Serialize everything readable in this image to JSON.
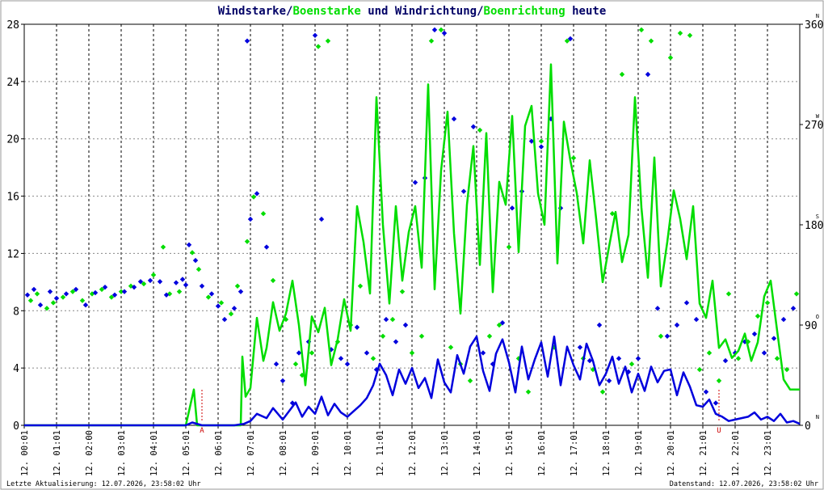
{
  "colors": {
    "wind": "#0000dd",
    "gust": "#00dd00",
    "title_dark": "#000066",
    "grid": "#000000",
    "marker": "#cc0000"
  },
  "chart_data": {
    "type": "line",
    "title_parts": [
      "Windstarke",
      "/",
      "Boenstarke",
      " und ",
      "Windrichtung",
      "/",
      "Boenrichtung",
      " heute"
    ],
    "xlabel": "",
    "ylabel": "",
    "x_range_hours": [
      0,
      24
    ],
    "ylim": [
      0,
      28
    ],
    "y_ticks": [
      0,
      4,
      8,
      12,
      16,
      20,
      24,
      28
    ],
    "y2_range_degrees": [
      0,
      360
    ],
    "y2_ticks": [
      "0",
      "90",
      "180",
      "270",
      "360"
    ],
    "y2_dir_labels": [
      "N",
      "O",
      "S",
      "W",
      "N"
    ],
    "x_tick_labels": [
      "12. 00:01",
      "12. 01:01",
      "12. 02:00",
      "12. 03:01",
      "12. 04:01",
      "12. 05:01",
      "12. 06:01",
      "12. 07:01",
      "12. 08:01",
      "12. 09:01",
      "12. 10:01",
      "12. 11:01",
      "12. 12:01",
      "12. 13:01",
      "12. 14:01",
      "12. 15:01",
      "12. 16:01",
      "12. 17:01",
      "12. 18:01",
      "12. 19:01",
      "12. 20:01",
      "12. 21:01",
      "12. 22:01",
      "12. 23:01"
    ],
    "markers": [
      {
        "label": "A",
        "hour": 5.5
      },
      {
        "label": "U",
        "hour": 21.5
      }
    ],
    "grid": true,
    "series": [
      {
        "name": "Windstarke",
        "kind": "line",
        "color": "#0000dd",
        "x": [
          0,
          0.5,
          1,
          1.5,
          2,
          2.5,
          3,
          3.5,
          4,
          4.5,
          5,
          5.2,
          5.5,
          6,
          6.5,
          6.8,
          7,
          7.2,
          7.5,
          7.7,
          8,
          8.2,
          8.4,
          8.6,
          8.8,
          9,
          9.2,
          9.4,
          9.6,
          9.8,
          10,
          10.2,
          10.4,
          10.6,
          10.8,
          11,
          11.2,
          11.4,
          11.6,
          11.8,
          12,
          12.2,
          12.4,
          12.6,
          12.8,
          13,
          13.2,
          13.4,
          13.6,
          13.8,
          14,
          14.2,
          14.4,
          14.6,
          14.8,
          15,
          15.2,
          15.4,
          15.6,
          15.8,
          16,
          16.2,
          16.4,
          16.6,
          16.8,
          17,
          17.2,
          17.4,
          17.6,
          17.8,
          18,
          18.2,
          18.4,
          18.6,
          18.8,
          19,
          19.2,
          19.4,
          19.6,
          19.8,
          20,
          20.2,
          20.4,
          20.6,
          20.8,
          21,
          21.2,
          21.4,
          21.6,
          21.8,
          22,
          22.2,
          22.4,
          22.6,
          22.8,
          23,
          23.2,
          23.4,
          23.6,
          23.8,
          24
        ],
        "values": [
          0,
          0,
          0,
          0,
          0,
          0,
          0,
          0,
          0,
          0,
          0,
          0.2,
          0,
          0,
          0,
          0.1,
          0.3,
          0.8,
          0.5,
          1.2,
          0.4,
          1.0,
          1.6,
          0.6,
          1.3,
          0.8,
          2.0,
          0.7,
          1.5,
          0.9,
          0.6,
          1.0,
          1.4,
          1.9,
          2.8,
          4.3,
          3.5,
          2.1,
          3.9,
          2.9,
          4.0,
          2.6,
          3.3,
          1.9,
          4.6,
          3.0,
          2.3,
          4.9,
          3.6,
          5.5,
          6.2,
          3.8,
          2.4,
          5.0,
          6.0,
          4.4,
          2.3,
          5.5,
          3.2,
          4.6,
          5.8,
          3.4,
          6.2,
          2.8,
          5.5,
          4.2,
          3.2,
          5.7,
          4.5,
          2.8,
          3.6,
          4.8,
          2.9,
          4.1,
          2.3,
          3.6,
          2.4,
          4.1,
          3.0,
          3.8,
          3.9,
          2.1,
          3.7,
          2.7,
          1.4,
          1.3,
          1.8,
          0.8,
          0.6,
          0.3,
          0.4,
          0.5,
          0.6,
          0.9,
          0.4,
          0.6,
          0.3,
          0.8,
          0.2,
          0.3,
          0.1
        ]
      },
      {
        "name": "Boenstarke",
        "kind": "line",
        "color": "#00dd00",
        "x": [
          0,
          1,
          2,
          3,
          4,
          5,
          5.25,
          5.35,
          5.5,
          6,
          6.5,
          6.7,
          6.75,
          6.85,
          7,
          7.2,
          7.4,
          7.5,
          7.7,
          7.9,
          8.1,
          8.3,
          8.5,
          8.7,
          8.9,
          9.1,
          9.3,
          9.5,
          9.7,
          9.9,
          10.1,
          10.3,
          10.5,
          10.7,
          10.9,
          11.1,
          11.3,
          11.5,
          11.7,
          11.9,
          12.1,
          12.3,
          12.5,
          12.7,
          12.9,
          13.1,
          13.3,
          13.5,
          13.7,
          13.9,
          14.1,
          14.3,
          14.5,
          14.7,
          14.9,
          15.1,
          15.3,
          15.5,
          15.7,
          15.9,
          16.1,
          16.3,
          16.5,
          16.7,
          16.9,
          17.1,
          17.3,
          17.5,
          17.7,
          17.9,
          18.1,
          18.3,
          18.5,
          18.7,
          18.9,
          19.1,
          19.3,
          19.5,
          19.7,
          19.9,
          20.1,
          20.3,
          20.5,
          20.7,
          20.9,
          21.1,
          21.3,
          21.5,
          21.7,
          21.9,
          22.1,
          22.3,
          22.5,
          22.7,
          22.9,
          23.1,
          23.3,
          23.5,
          23.7,
          23.9,
          24
        ],
        "values": [
          0,
          0,
          0,
          0,
          0,
          0,
          2.5,
          0,
          0,
          0,
          0,
          0,
          4.8,
          2.0,
          2.6,
          7.5,
          4.5,
          5.4,
          8.6,
          6.6,
          7.8,
          10.1,
          7.0,
          2.8,
          7.6,
          6.5,
          8.2,
          4.2,
          6.0,
          8.8,
          6.6,
          15.3,
          12.8,
          9.2,
          22.9,
          14.0,
          8.5,
          15.3,
          10.1,
          13.5,
          15.3,
          11.0,
          23.8,
          9.5,
          17.8,
          21.9,
          13.4,
          7.8,
          15.4,
          19.5,
          11.2,
          20.4,
          9.3,
          17.0,
          15.4,
          21.6,
          12.1,
          20.9,
          22.3,
          16.2,
          14.0,
          25.2,
          11.3,
          21.2,
          18.5,
          16.2,
          12.7,
          18.5,
          14.4,
          10.0,
          12.5,
          14.9,
          11.4,
          13.3,
          22.9,
          15.2,
          10.3,
          18.7,
          9.7,
          12.8,
          16.4,
          14.4,
          11.6,
          15.3,
          8.5,
          7.5,
          10.1,
          5.4,
          6.0,
          4.7,
          5.2,
          6.4,
          4.5,
          5.8,
          9.0,
          10.1,
          6.6,
          3.2,
          2.5,
          2.5,
          2.5
        ]
      },
      {
        "name": "Windrichtung",
        "kind": "scatter",
        "unit": "degrees",
        "color": "#0000dd",
        "x": [
          0.1,
          0.3,
          0.5,
          0.8,
          1.0,
          1.3,
          1.6,
          1.9,
          2.2,
          2.5,
          2.8,
          3.1,
          3.4,
          3.6,
          3.9,
          4.2,
          4.4,
          4.7,
          4.9,
          5.0,
          5.1,
          5.3,
          5.5,
          5.8,
          6.0,
          6.2,
          6.5,
          6.7,
          6.9,
          7.0,
          7.2,
          7.5,
          7.8,
          8.0,
          8.3,
          8.5,
          8.8,
          9.0,
          9.2,
          9.5,
          9.8,
          10.0,
          10.3,
          10.6,
          10.9,
          11.2,
          11.5,
          11.8,
          12.1,
          12.4,
          12.7,
          13.0,
          13.3,
          13.6,
          13.9,
          14.2,
          14.5,
          14.8,
          15.1,
          15.4,
          15.7,
          16.0,
          16.3,
          16.6,
          16.9,
          17.2,
          17.5,
          17.8,
          18.1,
          18.4,
          18.7,
          19.0,
          19.3,
          19.6,
          19.9,
          20.2,
          20.5,
          20.8,
          21.1,
          21.4,
          21.7,
          22.0,
          22.3,
          22.6,
          22.9,
          23.2,
          23.5,
          23.8
        ],
        "values": [
          117,
          122,
          108,
          120,
          114,
          118,
          122,
          108,
          119,
          124,
          117,
          120,
          124,
          129,
          130,
          129,
          117,
          128,
          131,
          126,
          162,
          148,
          125,
          118,
          107,
          95,
          105,
          120,
          345,
          185,
          208,
          160,
          55,
          40,
          20,
          65,
          75,
          350,
          185,
          68,
          60,
          55,
          88,
          65,
          50,
          95,
          75,
          90,
          218,
          222,
          355,
          352,
          275,
          210,
          268,
          65,
          55,
          92,
          195,
          210,
          255,
          250,
          275,
          195,
          347,
          70,
          58,
          90,
          40,
          60,
          48,
          60,
          315,
          105,
          80,
          90,
          110,
          95,
          30,
          20,
          58,
          65,
          75,
          82,
          65,
          78,
          95,
          105
        ]
      },
      {
        "name": "Boenrichtung",
        "kind": "scatter",
        "unit": "degrees",
        "color": "#00dd00",
        "x": [
          0.2,
          0.4,
          0.7,
          0.9,
          1.2,
          1.5,
          1.8,
          2.1,
          2.4,
          2.7,
          3.0,
          3.3,
          3.7,
          4.0,
          4.3,
          4.5,
          4.8,
          5.2,
          5.4,
          5.7,
          6.1,
          6.4,
          6.6,
          6.9,
          7.1,
          7.4,
          7.7,
          8.1,
          8.4,
          8.6,
          8.9,
          9.1,
          9.4,
          9.7,
          10.1,
          10.4,
          10.8,
          11.1,
          11.4,
          11.7,
          12.0,
          12.3,
          12.6,
          12.9,
          13.2,
          13.5,
          13.8,
          14.1,
          14.4,
          14.7,
          15.0,
          15.3,
          15.6,
          16.0,
          16.4,
          16.8,
          17.0,
          17.3,
          17.6,
          17.9,
          18.2,
          18.5,
          18.8,
          19.1,
          19.4,
          19.7,
          20.0,
          20.3,
          20.6,
          20.9,
          21.2,
          21.5,
          21.8,
          22.1,
          22.4,
          22.7,
          23.0,
          23.3,
          23.6,
          23.9
        ],
        "values": [
          112,
          118,
          105,
          110,
          115,
          120,
          112,
          118,
          122,
          115,
          120,
          125,
          127,
          135,
          160,
          118,
          120,
          155,
          140,
          115,
          110,
          100,
          125,
          165,
          205,
          190,
          130,
          95,
          55,
          45,
          65,
          340,
          345,
          75,
          90,
          125,
          60,
          80,
          95,
          120,
          65,
          80,
          345,
          355,
          70,
          55,
          40,
          265,
          80,
          90,
          160,
          60,
          30,
          255,
          70,
          345,
          240,
          60,
          50,
          30,
          190,
          315,
          55,
          355,
          345,
          80,
          330,
          352,
          350,
          50,
          65,
          40,
          118,
          60,
          75,
          98,
          110,
          60,
          50,
          118
        ]
      }
    ]
  },
  "footer": {
    "left": "Letzte Aktualisierung: 12.07.2026, 23:58:02 Uhr",
    "right": "Datenstand: 12.07.2026, 23:58:02 Uhr"
  }
}
